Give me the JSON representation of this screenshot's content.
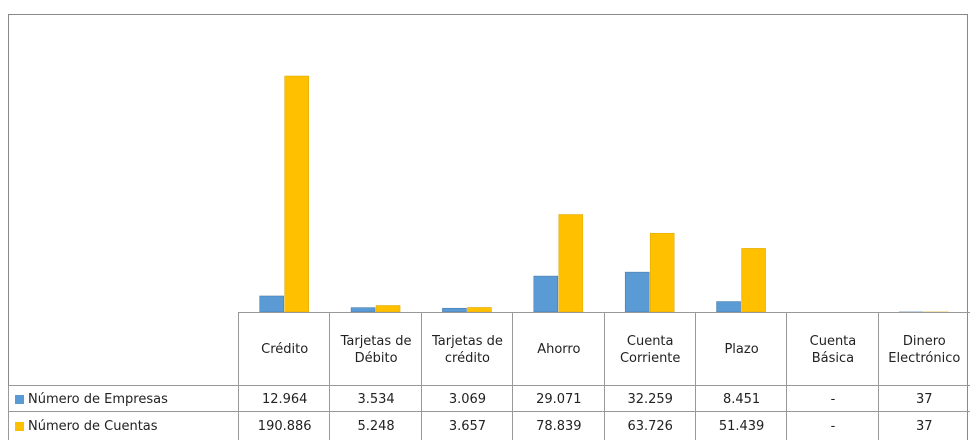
{
  "chart_data": {
    "type": "bar",
    "categories": [
      "Crédito",
      "Tarjetas de Débito",
      "Tarjetas de crédito",
      "Ahorro",
      "Cuenta Corriente",
      "Plazo",
      "Cuenta Básica",
      "Dinero Electrónico"
    ],
    "series": [
      {
        "name": "Número de Empresas",
        "color": "#5b9bd5",
        "values": [
          12964,
          3534,
          3069,
          29071,
          32259,
          8451,
          null,
          37
        ],
        "value_labels": [
          "12.964",
          "3.534",
          "3.069",
          "29.071",
          "32.259",
          "8.451",
          "-",
          "37"
        ]
      },
      {
        "name": "Número de Cuentas",
        "color": "#ffc000",
        "values": [
          190886,
          5248,
          3657,
          78839,
          63726,
          51439,
          null,
          37
        ],
        "value_labels": [
          "190.886",
          "5.248",
          "3.657",
          "78.839",
          "63.726",
          "51.439",
          "-",
          "37"
        ]
      }
    ]
  }
}
